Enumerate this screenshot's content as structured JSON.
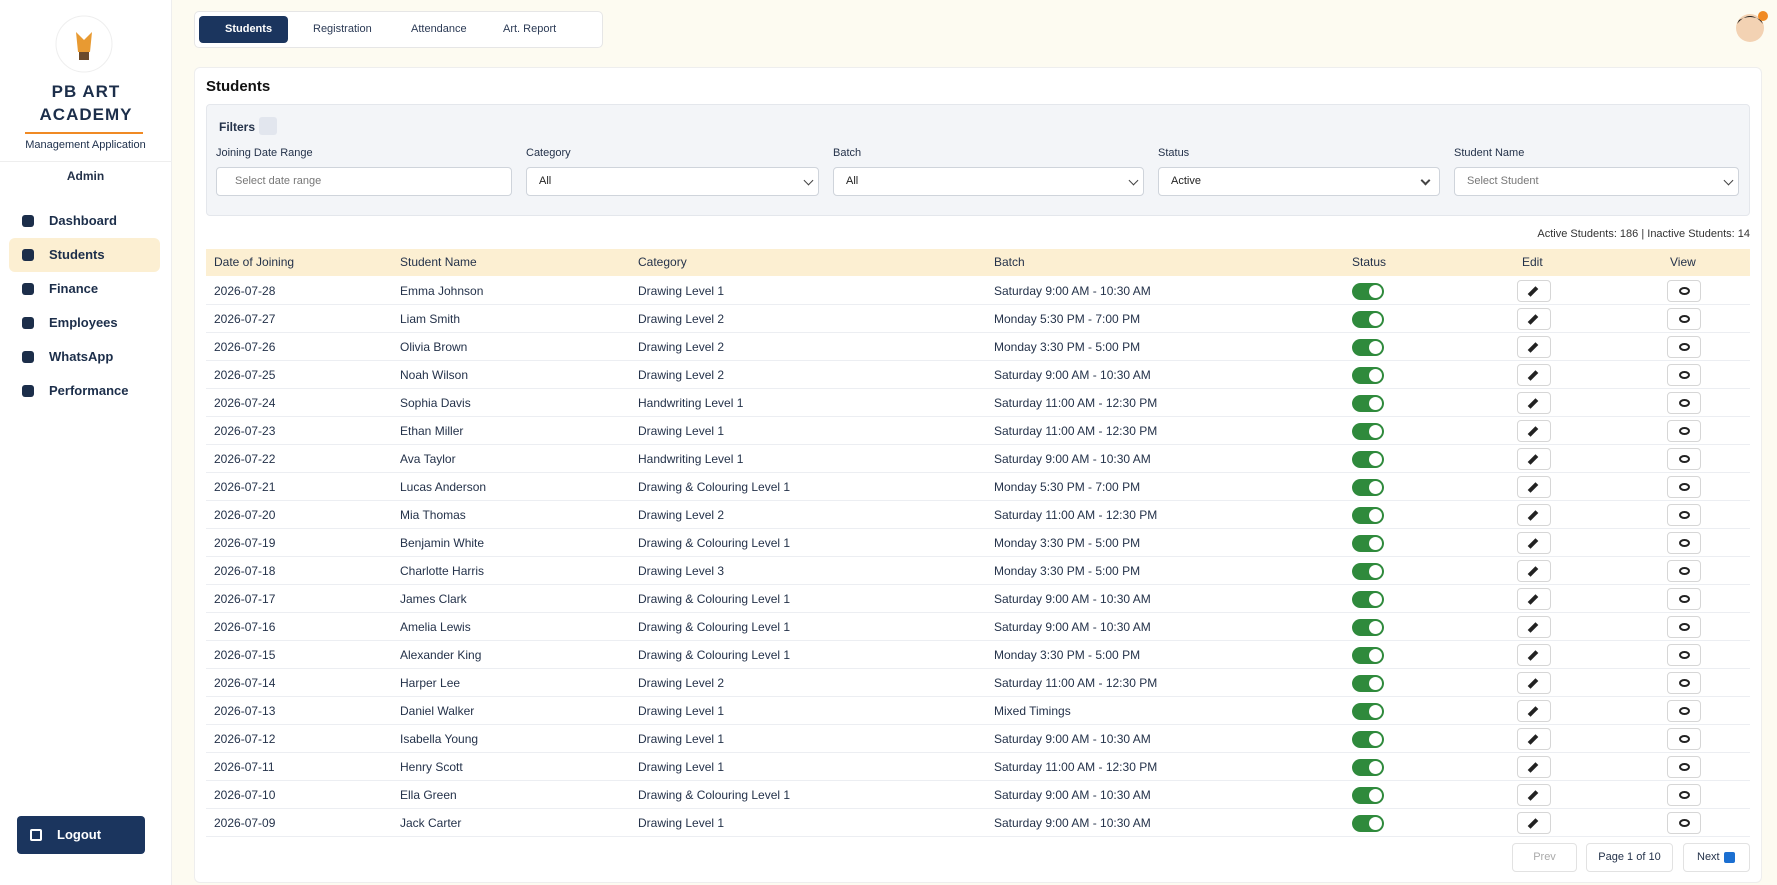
{
  "sidebar": {
    "brand": "PB ART ACADEMY",
    "subtitle": "Management Application",
    "role": "Admin",
    "nav": [
      "Dashboard",
      "Students",
      "Finance",
      "Employees",
      "WhatsApp",
      "Performance"
    ],
    "logout": "Logout"
  },
  "tabs": [
    "Students",
    "Registration",
    "Attendance",
    "Art. Report"
  ],
  "page": {
    "title": "Students",
    "filters": {
      "label": "Filters",
      "fields": [
        {
          "label": "Joining Date Range",
          "value": "Select date range"
        },
        {
          "label": "Category",
          "value": "All"
        },
        {
          "label": "Batch",
          "value": "All"
        },
        {
          "label": "Status",
          "value": "Active"
        },
        {
          "label": "Student Name",
          "value": "Select Student"
        }
      ]
    },
    "counts": "Active Students: 186 | Inactive Students: 14",
    "table": {
      "headers": [
        "Date of Joining",
        "Student Name",
        "Category",
        "Batch",
        "Status",
        "Edit",
        "View"
      ],
      "rows": [
        [
          "2026-07-28",
          "Emma Johnson",
          "Drawing Level 1",
          "Saturday 9:00 AM - 10:30 AM"
        ],
        [
          "2026-07-27",
          "Liam Smith",
          "Drawing Level 2",
          "Monday 5:30 PM - 7:00 PM"
        ],
        [
          "2026-07-26",
          "Olivia Brown",
          "Drawing Level 2",
          "Monday 3:30 PM - 5:00 PM"
        ],
        [
          "2026-07-25",
          "Noah Wilson",
          "Drawing Level 2",
          "Saturday 9:00 AM - 10:30 AM"
        ],
        [
          "2026-07-24",
          "Sophia Davis",
          "Handwriting Level 1",
          "Saturday 11:00 AM - 12:30 PM"
        ],
        [
          "2026-07-23",
          "Ethan Miller",
          "Drawing Level 1",
          "Saturday 11:00 AM - 12:30 PM"
        ],
        [
          "2026-07-22",
          "Ava Taylor",
          "Handwriting Level 1",
          "Saturday 9:00 AM - 10:30 AM"
        ],
        [
          "2026-07-21",
          "Lucas Anderson",
          "Drawing & Colouring Level 1",
          "Monday 5:30 PM - 7:00 PM"
        ],
        [
          "2026-07-20",
          "Mia Thomas",
          "Drawing Level 2",
          "Saturday 11:00 AM - 12:30 PM"
        ],
        [
          "2026-07-19",
          "Benjamin White",
          "Drawing & Colouring Level 1",
          "Monday 3:30 PM - 5:00 PM"
        ],
        [
          "2026-07-18",
          "Charlotte Harris",
          "Drawing Level 3",
          "Monday 3:30 PM - 5:00 PM"
        ],
        [
          "2026-07-17",
          "James Clark",
          "Drawing & Colouring Level 1",
          "Saturday 9:00 AM - 10:30 AM"
        ],
        [
          "2026-07-16",
          "Amelia Lewis",
          "Drawing & Colouring Level 1",
          "Saturday 9:00 AM - 10:30 AM"
        ],
        [
          "2026-07-15",
          "Alexander King",
          "Drawing & Colouring Level 1",
          "Monday 3:30 PM - 5:00 PM"
        ],
        [
          "2026-07-14",
          "Harper Lee",
          "Drawing Level 2",
          "Saturday 11:00 AM - 12:30 PM"
        ],
        [
          "2026-07-13",
          "Daniel Walker",
          "Drawing Level 1",
          "Mixed Timings"
        ],
        [
          "2026-07-12",
          "Isabella Young",
          "Drawing Level 1",
          "Saturday 9:00 AM - 10:30 AM"
        ],
        [
          "2026-07-11",
          "Henry Scott",
          "Drawing Level 1",
          "Saturday 11:00 AM - 12:30 PM"
        ],
        [
          "2026-07-10",
          "Ella Green",
          "Drawing & Colouring Level 1",
          "Saturday 9:00 AM - 10:30 AM"
        ],
        [
          "2026-07-09",
          "Jack Carter",
          "Drawing Level 1",
          "Saturday 9:00 AM - 10:30 AM"
        ]
      ]
    },
    "pagination": {
      "prev": "Prev",
      "page": "Page 1 of 10",
      "next": "Next"
    }
  }
}
